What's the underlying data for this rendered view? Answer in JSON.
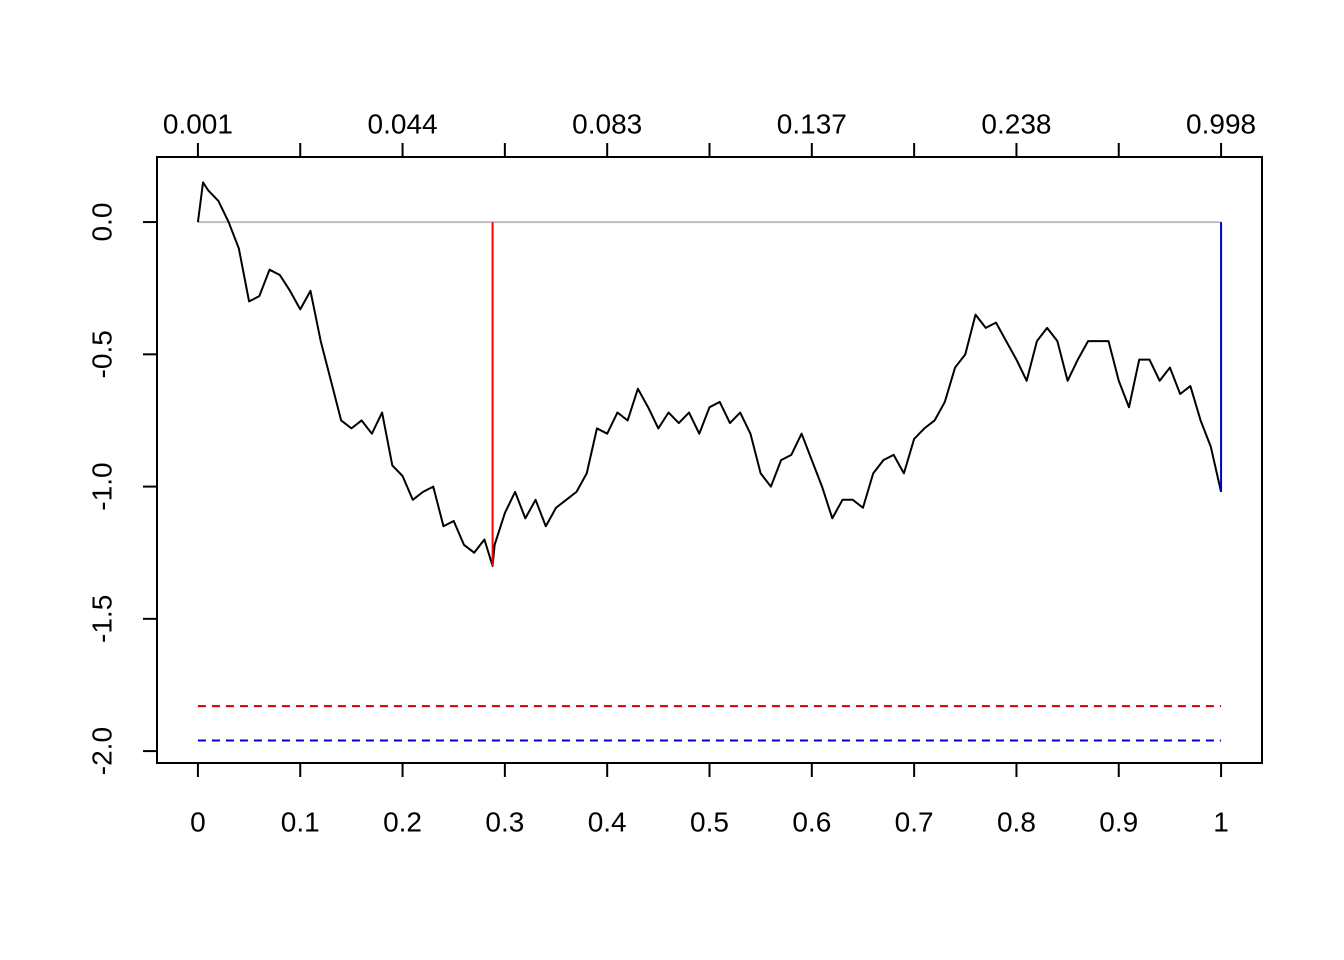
{
  "chart_data": {
    "type": "line",
    "x": [
      0,
      0.005,
      0.01,
      0.02,
      0.03,
      0.04,
      0.05,
      0.06,
      0.07,
      0.08,
      0.09,
      0.1,
      0.11,
      0.12,
      0.13,
      0.14,
      0.15,
      0.16,
      0.17,
      0.18,
      0.19,
      0.2,
      0.21,
      0.22,
      0.23,
      0.24,
      0.25,
      0.26,
      0.27,
      0.28,
      0.288,
      0.29,
      0.3,
      0.31,
      0.32,
      0.33,
      0.34,
      0.35,
      0.36,
      0.37,
      0.38,
      0.39,
      0.4,
      0.41,
      0.42,
      0.43,
      0.44,
      0.45,
      0.46,
      0.47,
      0.48,
      0.49,
      0.5,
      0.51,
      0.52,
      0.53,
      0.54,
      0.55,
      0.56,
      0.57,
      0.58,
      0.59,
      0.6,
      0.61,
      0.62,
      0.63,
      0.64,
      0.65,
      0.66,
      0.67,
      0.68,
      0.69,
      0.7,
      0.71,
      0.72,
      0.73,
      0.74,
      0.75,
      0.76,
      0.77,
      0.78,
      0.79,
      0.8,
      0.81,
      0.82,
      0.83,
      0.84,
      0.85,
      0.86,
      0.87,
      0.88,
      0.89,
      0.9,
      0.91,
      0.92,
      0.93,
      0.94,
      0.95,
      0.96,
      0.97,
      0.98,
      0.99,
      1
    ],
    "series": [
      {
        "color": "#000000",
        "values": [
          0,
          0.15,
          0.12,
          0.08,
          0,
          -0.1,
          -0.3,
          -0.28,
          -0.18,
          -0.2,
          -0.26,
          -0.33,
          -0.26,
          -0.45,
          -0.6,
          -0.75,
          -0.78,
          -0.75,
          -0.8,
          -0.72,
          -0.92,
          -0.96,
          -1.05,
          -1.02,
          -1.0,
          -1.15,
          -1.13,
          -1.22,
          -1.25,
          -1.2,
          -1.3,
          -1.22,
          -1.1,
          -1.02,
          -1.12,
          -1.05,
          -1.15,
          -1.08,
          -1.05,
          -1.02,
          -0.95,
          -0.78,
          -0.8,
          -0.72,
          -0.75,
          -0.63,
          -0.7,
          -0.78,
          -0.72,
          -0.76,
          -0.72,
          -0.8,
          -0.7,
          -0.68,
          -0.76,
          -0.72,
          -0.8,
          -0.95,
          -1.0,
          -0.9,
          -0.88,
          -0.8,
          -0.9,
          -1.0,
          -1.12,
          -1.05,
          -1.05,
          -1.08,
          -0.95,
          -0.9,
          -0.88,
          -0.95,
          -0.82,
          -0.78,
          -0.75,
          -0.68,
          -0.55,
          -0.5,
          -0.35,
          -0.4,
          -0.38,
          -0.45,
          -0.52,
          -0.6,
          -0.45,
          -0.4,
          -0.45,
          -0.6,
          -0.52,
          -0.45,
          -0.45,
          -0.45,
          -0.6,
          -0.7,
          -0.52,
          -0.52,
          -0.6,
          -0.55,
          -0.65,
          -0.62,
          -0.75,
          -0.85,
          -1.02
        ]
      }
    ],
    "hlines": [
      {
        "y": 0,
        "x": [
          0,
          1
        ],
        "color": "#bebebe",
        "dashed": false
      },
      {
        "y": -1.83,
        "x": [
          0,
          1
        ],
        "color": "#cc0000",
        "dashed": true
      },
      {
        "y": -1.96,
        "x": [
          0,
          1
        ],
        "color": "#0000cc",
        "dashed": true
      }
    ],
    "vlines": [
      {
        "x": 0.288,
        "y": [
          0,
          -1.3
        ],
        "color": "#ff0000"
      },
      {
        "x": 1,
        "y": [
          0,
          -1.02
        ],
        "color": "#0000cc"
      }
    ],
    "xlim": [
      -0.04,
      1.04
    ],
    "xticks": [
      0,
      0.1,
      0.2,
      0.3,
      0.4,
      0.5,
      0.6,
      0.7,
      0.8,
      0.9,
      1
    ],
    "x2ticks": [
      0,
      0.1,
      0.2,
      0.3,
      0.4,
      0.5,
      0.6,
      0.7,
      0.8,
      0.9,
      1
    ],
    "x2tick_labels": [
      "0.001",
      null,
      "0.044",
      null,
      "0.083",
      null,
      "0.137",
      null,
      "0.238",
      null,
      "0.998"
    ],
    "ylim": [
      -2.045,
      0.246
    ],
    "yticks": [
      {
        "value": 0,
        "label": "0.0"
      },
      -0.5,
      {
        "value": -1,
        "label": "-1.0"
      },
      -1.5,
      {
        "value": -2,
        "label": "-2.0"
      }
    ]
  }
}
